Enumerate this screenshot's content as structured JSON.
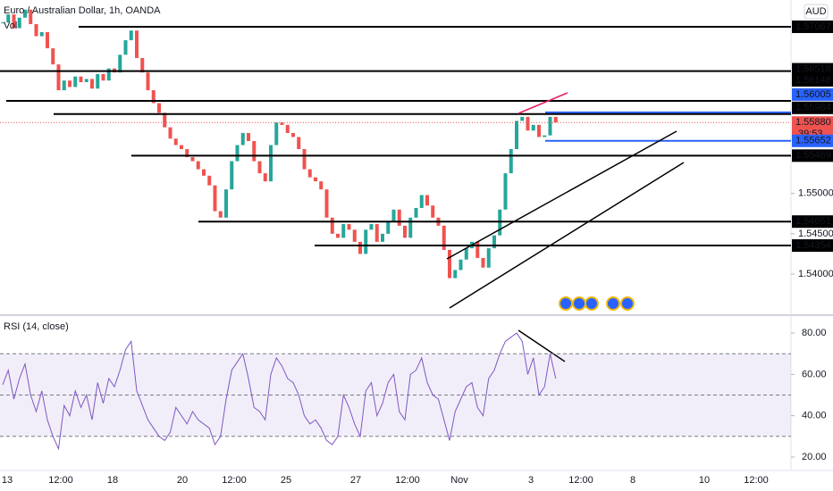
{
  "header": {
    "symbol": "Euro / Australian Dollar, 1h, OANDA",
    "volume": "Vol",
    "currency": "AUD"
  },
  "chart_data": [
    {
      "type": "candlestick",
      "close": [
        1.5712,
        1.5722,
        1.5705,
        1.5718,
        1.5728,
        1.571,
        1.5695,
        1.57,
        1.568,
        1.566,
        1.5628,
        1.564,
        1.5632,
        1.5645,
        1.5638,
        1.5642,
        1.563,
        1.5648,
        1.564,
        1.5655,
        1.565,
        1.5672,
        1.569,
        1.5702,
        1.5668,
        1.565,
        1.5628,
        1.5612,
        1.56,
        1.5582,
        1.5568,
        1.556,
        1.5555,
        1.5545,
        1.554,
        1.553,
        1.5522,
        1.551,
        1.5478,
        1.547,
        1.5505,
        1.554,
        1.556,
        1.5575,
        1.5565,
        1.554,
        1.5525,
        1.5515,
        1.556,
        1.5588,
        1.5585,
        1.5575,
        1.557,
        1.5555,
        1.553,
        1.552,
        1.5515,
        1.5505,
        1.547,
        1.545,
        1.5445,
        1.5462,
        1.5455,
        1.544,
        1.5425,
        1.5455,
        1.5462,
        1.544,
        1.545,
        1.5465,
        1.548,
        1.546,
        1.5445,
        1.547,
        1.5482,
        1.5498,
        1.5485,
        1.547,
        1.546,
        1.543,
        1.5395,
        1.5405,
        1.5418,
        1.5432,
        1.544,
        1.542,
        1.5408,
        1.5432,
        1.5448,
        1.548,
        1.5525,
        1.5555,
        1.559,
        1.5595,
        1.5578,
        1.5585,
        1.557,
        1.5572,
        1.5595,
        1.5588
      ],
      "up_color": "#26a69a",
      "down_color": "#ef5350",
      "ylim": [
        1.53524,
        1.57399
      ],
      "yticks": [
        {
          "value": 1.55,
          "label": "1.55000"
        },
        {
          "value": 1.545,
          "label": "1.54500"
        },
        {
          "value": 1.54,
          "label": "1.54000"
        }
      ],
      "levels": [
        {
          "value": 1.57067,
          "label": "1.57067",
          "color": "#000000"
        },
        {
          "value": 1.56518,
          "label": "1.56518",
          "color": "#000000"
        },
        {
          "value": 1.56148,
          "label": "1.56148",
          "color": "#000000"
        },
        {
          "value": 1.56005,
          "label": "1.56005",
          "color": "#2962ff"
        },
        {
          "value": 1.55984,
          "label": "1.55984",
          "color": "#000000"
        },
        {
          "value": 1.5588,
          "label": "1.55880",
          "color": "#ef5350"
        },
        {
          "value": 1.55652,
          "label": "1.55652",
          "color": "#2962ff"
        },
        {
          "value": 1.55469,
          "label": "1.55469",
          "color": "#000000"
        },
        {
          "value": 1.54651,
          "label": "1.54651",
          "color": "#000000"
        },
        {
          "value": 1.54354,
          "label": "1.54354",
          "color": "#000000"
        }
      ],
      "countdown": "39:53",
      "x_labels": [
        "13",
        "12:00",
        "18",
        "20",
        "12:00",
        "25",
        "27",
        "12:00",
        "Nov",
        "3",
        "12:00",
        "8",
        "10",
        "12:00"
      ]
    },
    {
      "type": "line",
      "title": "RSI (14, close)",
      "color": "#7e57c2",
      "values": [
        55,
        62,
        48,
        58,
        65,
        50,
        42,
        52,
        38,
        30,
        24,
        45,
        40,
        52,
        44,
        50,
        38,
        56,
        46,
        58,
        54,
        62,
        72,
        76,
        52,
        45,
        38,
        34,
        30,
        28,
        32,
        44,
        40,
        36,
        42,
        38,
        36,
        34,
        26,
        30,
        48,
        62,
        66,
        70,
        58,
        44,
        42,
        38,
        60,
        68,
        64,
        58,
        56,
        50,
        40,
        36,
        38,
        34,
        28,
        26,
        30,
        50,
        44,
        36,
        30,
        52,
        56,
        40,
        46,
        56,
        60,
        42,
        38,
        60,
        62,
        68,
        56,
        50,
        48,
        38,
        28,
        42,
        48,
        54,
        56,
        44,
        40,
        58,
        62,
        70,
        76,
        78,
        80,
        76,
        60,
        68,
        50,
        54,
        70,
        58
      ],
      "ylim": [
        13.5,
        87.8
      ],
      "yticks": [
        {
          "value": 80,
          "label": "80.00"
        },
        {
          "value": 60,
          "label": "60.00"
        },
        {
          "value": 40,
          "label": "40.00"
        },
        {
          "value": 20,
          "label": "20.00"
        }
      ],
      "band": [
        30,
        70
      ],
      "midline": 50
    }
  ]
}
